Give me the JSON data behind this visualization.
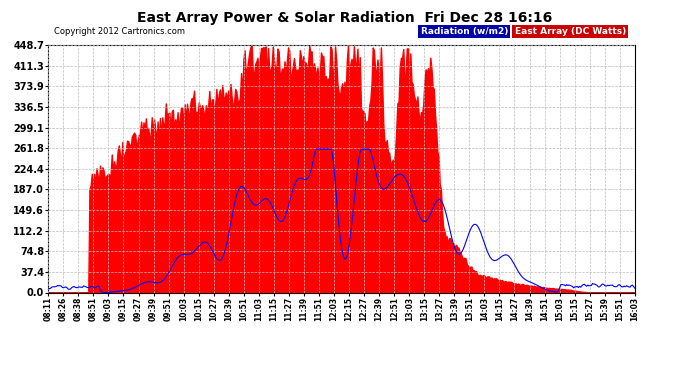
{
  "title": "East Array Power & Solar Radiation  Fri Dec 28 16:16",
  "copyright": "Copyright 2012 Cartronics.com",
  "legend_radiation": "Radiation (w/m2)",
  "legend_east_array": "East Array (DC Watts)",
  "y_ticks": [
    0.0,
    37.4,
    74.8,
    112.2,
    149.6,
    187.0,
    224.4,
    261.8,
    299.1,
    336.5,
    373.9,
    411.3,
    448.7
  ],
  "y_max": 448.7,
  "y_min": 0.0,
  "background_color": "#ffffff",
  "grid_color": "#bbbbbb",
  "fill_color": "#FF0000",
  "line_color": "#0000FF",
  "x_labels": [
    "08:11",
    "08:26",
    "08:38",
    "08:51",
    "09:03",
    "09:15",
    "09:27",
    "09:39",
    "09:51",
    "10:03",
    "10:15",
    "10:27",
    "10:39",
    "10:51",
    "11:03",
    "11:15",
    "11:27",
    "11:39",
    "11:51",
    "12:03",
    "12:15",
    "12:27",
    "12:39",
    "12:51",
    "13:03",
    "13:15",
    "13:27",
    "13:39",
    "13:51",
    "14:03",
    "14:15",
    "14:27",
    "14:39",
    "14:51",
    "15:03",
    "15:15",
    "15:27",
    "15:39",
    "15:51",
    "16:03"
  ]
}
